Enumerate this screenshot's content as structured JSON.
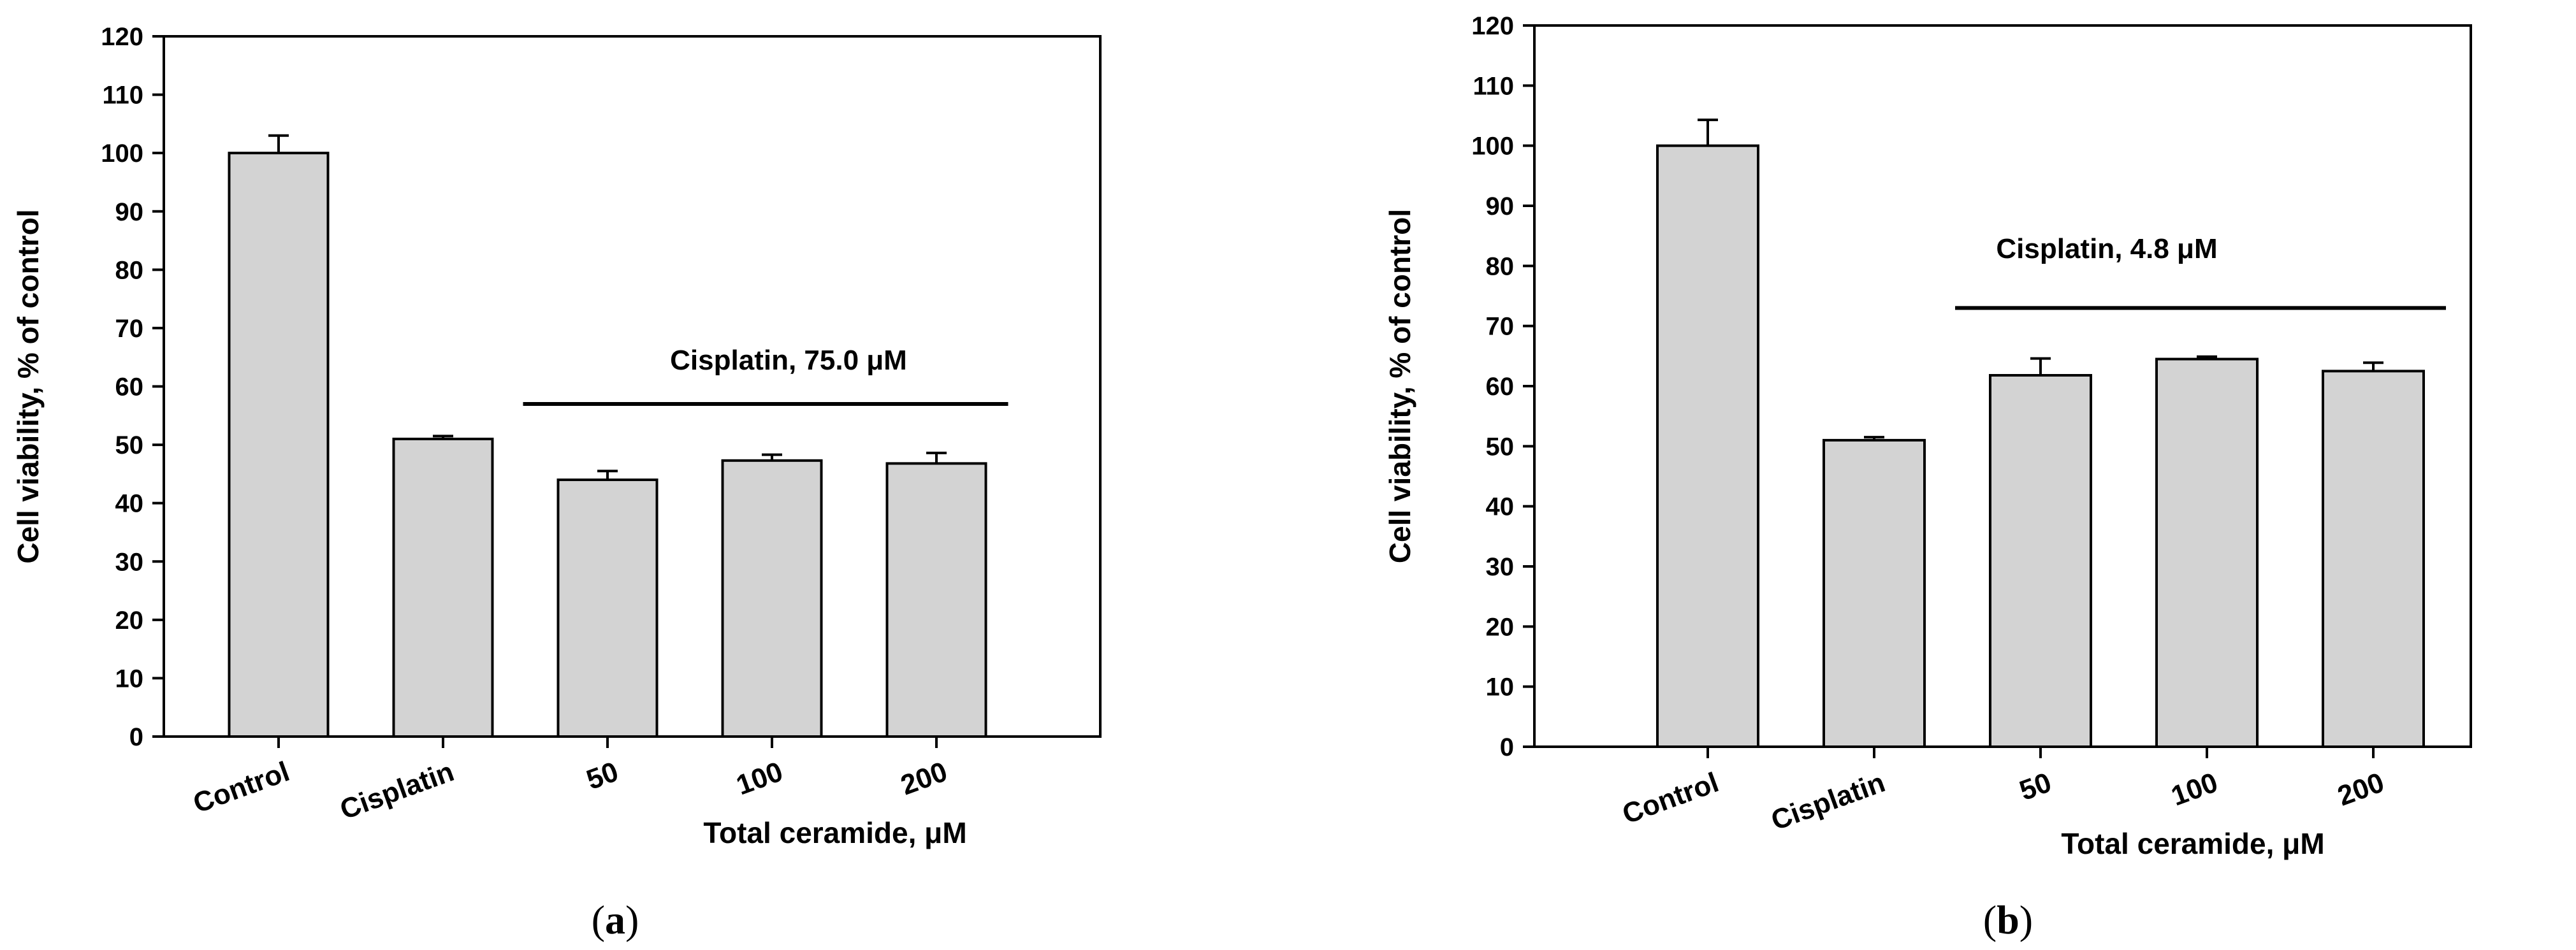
{
  "chart_data": [
    {
      "type": "bar",
      "panel": "a",
      "categories": [
        "Control",
        "Cisplatin",
        "50",
        "100",
        "200"
      ],
      "values": [
        100,
        51,
        44,
        47.3,
        46.8
      ],
      "errors": [
        3,
        0.5,
        1.5,
        1,
        1.8
      ],
      "xlabel": "Total ceramide, μM",
      "ylabel": "Cell viability, % of control",
      "ylim": [
        0,
        120
      ],
      "yticks": [
        0,
        10,
        20,
        30,
        40,
        50,
        60,
        70,
        80,
        90,
        100,
        110,
        120
      ],
      "bar_color": "#d3d3d3",
      "annotation": {
        "text": "Cisplatin, 75.0 μM",
        "y": 57,
        "from_category": "50",
        "to_category": "200"
      },
      "panel_label": {
        "open": "(",
        "letter": "a",
        "close": ")"
      }
    },
    {
      "type": "bar",
      "panel": "b",
      "categories": [
        "Control",
        "Cisplatin",
        "50",
        "100",
        "200"
      ],
      "values": [
        100,
        51,
        61.8,
        64.5,
        62.5
      ],
      "errors": [
        4.3,
        0.5,
        2.8,
        0.4,
        1.4
      ],
      "xlabel": "Total ceramide, μM",
      "ylabel": "Cell viability, % of control",
      "ylim": [
        0,
        120
      ],
      "yticks": [
        0,
        10,
        20,
        30,
        40,
        50,
        60,
        70,
        80,
        90,
        100,
        110,
        120
      ],
      "bar_color": "#d3d3d3",
      "annotation": {
        "text": "Cisplatin, 4.8 μM",
        "y": 73,
        "from_category": "50",
        "to_category": "200"
      },
      "panel_label": {
        "open": "(",
        "letter": "b",
        "close": ")"
      }
    }
  ]
}
